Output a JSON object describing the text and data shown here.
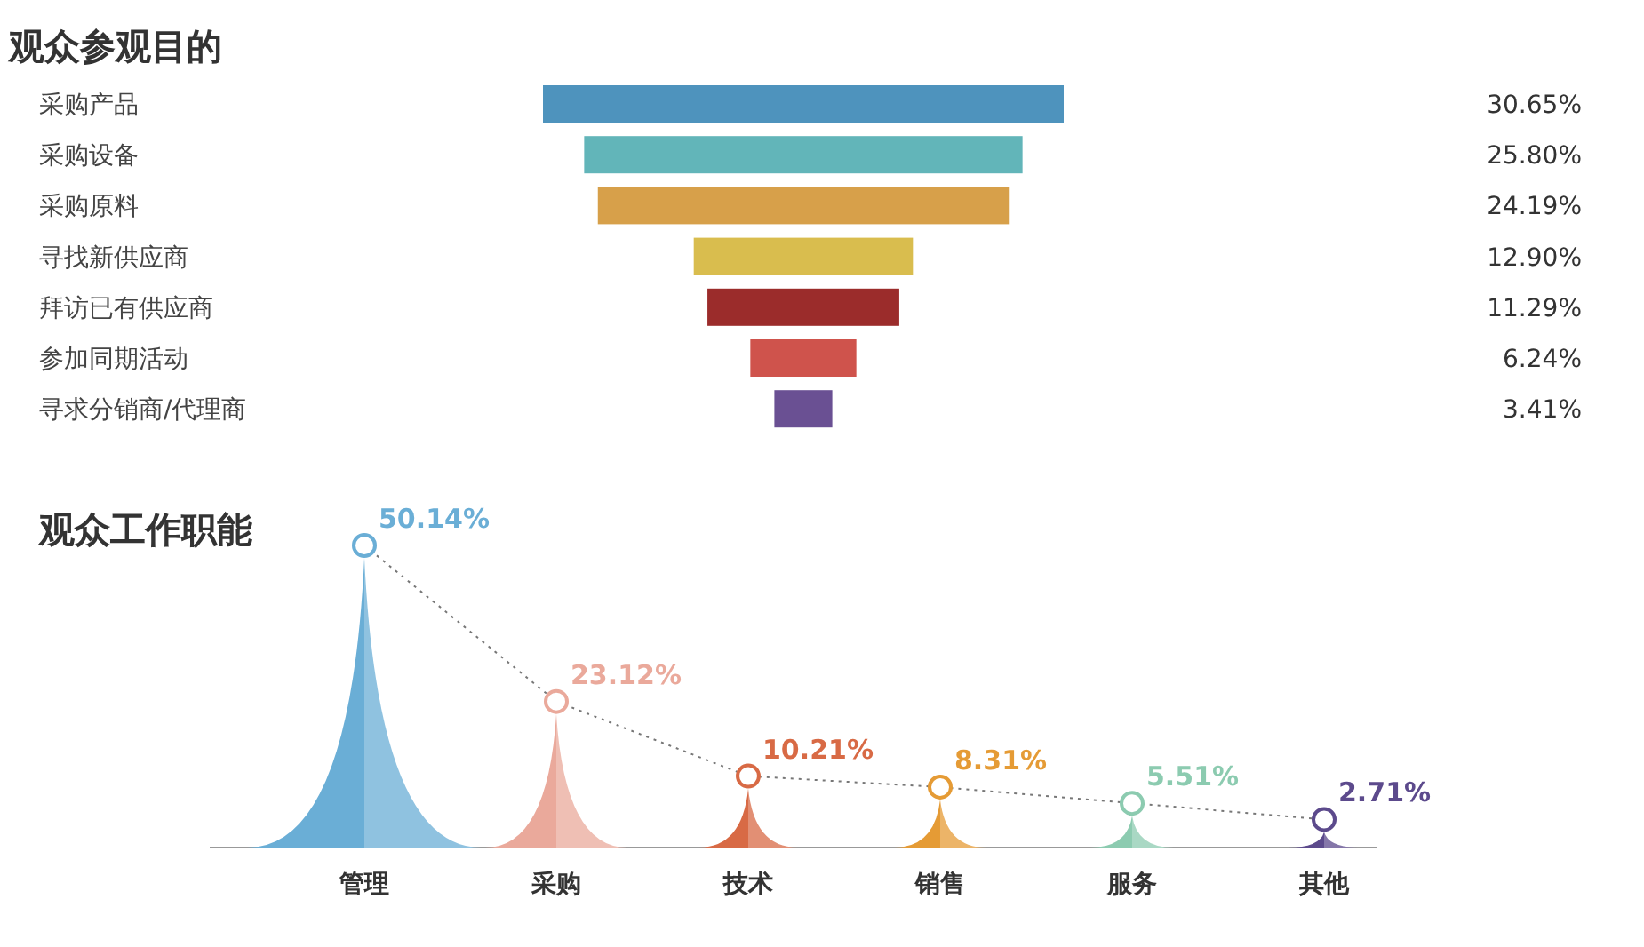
{
  "chart_data": [
    {
      "type": "other",
      "title": "观众参观目的",
      "categories": [
        "采购产品",
        "采购设备",
        "采购原料",
        "寻找新供应商",
        "拜访已有供应商",
        "参加同期活动",
        "寻求分销商/代理商"
      ],
      "values": [
        30.65,
        25.8,
        24.19,
        12.9,
        11.29,
        6.24,
        3.41
      ],
      "value_labels": [
        "30.65%",
        "25.80%",
        "24.19%",
        "12.90%",
        "11.29%",
        "6.24%",
        "3.41%"
      ],
      "colors": [
        "#4e93bd",
        "#62b5b9",
        "#d7a04a",
        "#d9bd4e",
        "#9b2c2b",
        "#cf534c",
        "#6a5093"
      ]
    },
    {
      "type": "other",
      "title": "观众工作职能",
      "categories": [
        "管理",
        "采购",
        "技术",
        "销售",
        "服务",
        "其他"
      ],
      "values": [
        50.14,
        23.12,
        10.21,
        8.31,
        5.51,
        2.71
      ],
      "value_labels": [
        "50.14%",
        "23.12%",
        "10.21%",
        "8.31%",
        "5.51%",
        "2.71%"
      ],
      "colors": [
        "#6aaed6",
        "#eaa99b",
        "#d86a45",
        "#e59b35",
        "#8ccbb0",
        "#5c4a8c"
      ]
    }
  ]
}
